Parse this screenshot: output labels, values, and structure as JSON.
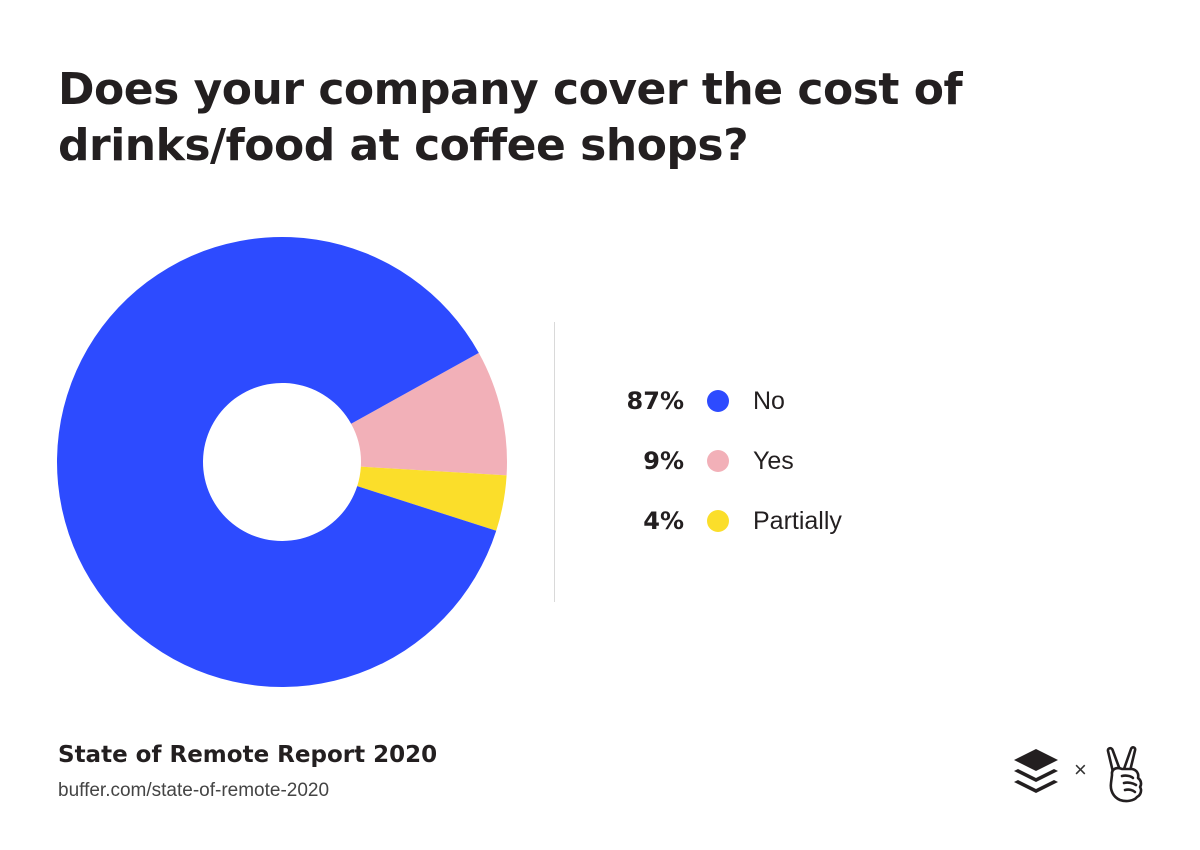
{
  "header": {
    "title_line1": "Does your company cover the cost of",
    "title_line2": "drinks/food at coffee shops?"
  },
  "chart_data": {
    "type": "pie",
    "donut": true,
    "title": "Does your company cover the cost of drinks/food at coffee shops?",
    "slices": [
      {
        "label": "No",
        "value": 87,
        "value_label": "87%",
        "color": "#2d4bff"
      },
      {
        "label": "Yes",
        "value": 9,
        "value_label": "9%",
        "color": "#f2b0b8"
      },
      {
        "label": "Partially",
        "value": 4,
        "value_label": "4%",
        "color": "#fbde2a"
      }
    ],
    "legend_position": "right"
  },
  "footer": {
    "report_title": "State of Remote Report 2020",
    "url": "buffer.com/state-of-remote-2020",
    "separator": "×"
  },
  "icons": {
    "buffer_logo": "buffer-logo-icon",
    "peace_hand": "peace-hand-icon"
  }
}
